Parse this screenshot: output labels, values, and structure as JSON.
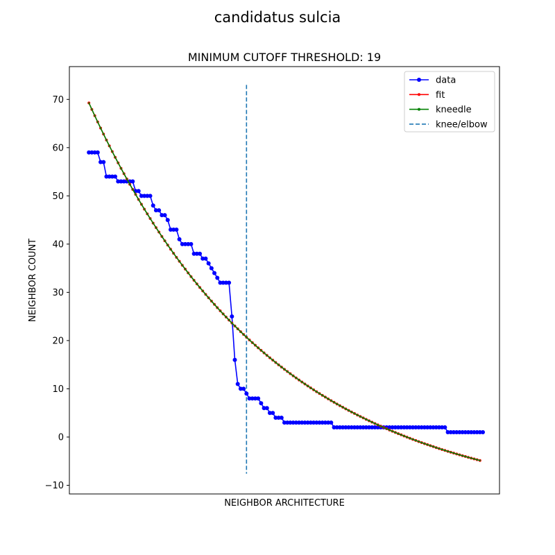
{
  "figure": {
    "suptitle": "candidatus sulcia"
  },
  "chart_data": {
    "type": "line",
    "title": "MINIMUM CUTOFF THRESHOLD: 19",
    "xlabel": "NEIGHBOR ARCHITECTURE",
    "ylabel": "NEIGHBOR COUNT",
    "xlim": [
      -6.7,
      140.7
    ],
    "ylim": [
      -11.8,
      76.8
    ],
    "yticks": [
      -10,
      0,
      10,
      20,
      30,
      40,
      50,
      60,
      70
    ],
    "xticks_visible": false,
    "grid": false,
    "legend_position": "top-right",
    "legend": [
      {
        "label": "data",
        "color": "#0000ff",
        "style": "line-dot"
      },
      {
        "label": "fit",
        "color": "#ff0000",
        "style": "line-dot"
      },
      {
        "label": "kneedle",
        "color": "#008000",
        "style": "line-dot"
      },
      {
        "label": "knee/elbow",
        "color": "#1f77b4",
        "style": "dashed"
      }
    ],
    "series": [
      {
        "name": "data",
        "color": "#0000ff",
        "values": [
          59,
          59,
          59,
          59,
          57,
          57,
          54,
          54,
          54,
          54,
          53,
          53,
          53,
          53,
          53,
          53,
          51,
          51,
          50,
          50,
          50,
          50,
          48,
          47,
          47,
          46,
          46,
          45,
          43,
          43,
          43,
          41,
          40,
          40,
          40,
          40,
          38,
          38,
          38,
          37,
          37,
          36,
          35,
          34,
          33,
          32,
          32,
          32,
          32,
          25,
          16,
          11,
          10,
          10,
          9,
          8,
          8,
          8,
          8,
          7,
          6,
          6,
          5,
          5,
          4,
          4,
          4,
          3,
          3,
          3,
          3,
          3,
          3,
          3,
          3,
          3,
          3,
          3,
          3,
          3,
          3,
          3,
          3,
          3,
          2,
          2,
          2,
          2,
          2,
          2,
          2,
          2,
          2,
          2,
          2,
          2,
          2,
          2,
          2,
          2,
          2,
          2,
          2,
          2,
          2,
          2,
          2,
          2,
          2,
          2,
          2,
          2,
          2,
          2,
          2,
          2,
          2,
          2,
          2,
          2,
          2,
          2,
          2,
          1,
          1,
          1,
          1,
          1,
          1,
          1,
          1,
          1,
          1,
          1,
          1,
          1
        ]
      },
      {
        "name": "fit",
        "color": "#ff0000",
        "exponential_fit": {
          "a": 83.96,
          "b": 0.016,
          "c": -14.7,
          "n": 135
        }
      },
      {
        "name": "kneedle",
        "color": "#008000",
        "same_as": "fit"
      }
    ],
    "knee": {
      "label": "knee/elbow",
      "x": 54,
      "y_range": [
        -7.6,
        73
      ],
      "color": "#1f77b4"
    }
  }
}
